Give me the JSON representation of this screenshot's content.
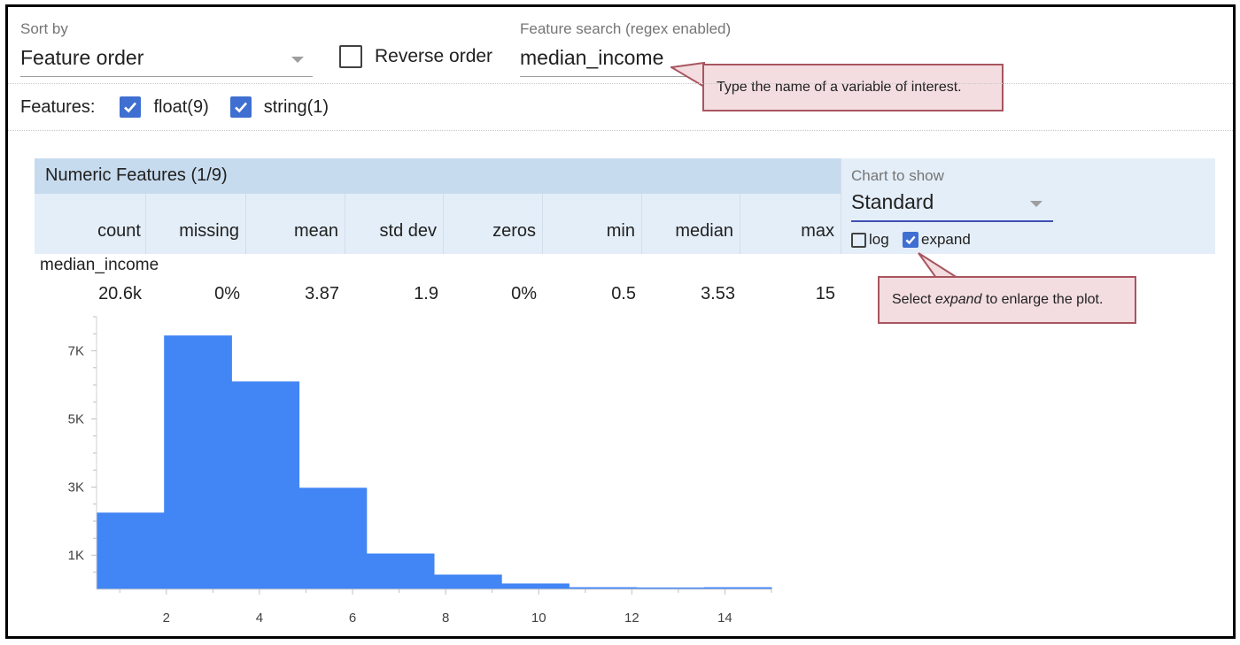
{
  "sort": {
    "label": "Sort by",
    "value": "Feature order",
    "reverse_label": "Reverse order"
  },
  "search": {
    "label": "Feature search (regex enabled)",
    "value": "median_income"
  },
  "callouts": {
    "search_tip": "Type the name of a variable of interest.",
    "expand_tip_prefix": "Select ",
    "expand_tip_em": "expand",
    "expand_tip_suffix": " to enlarge the plot."
  },
  "features": {
    "label": "Features:",
    "filters": [
      {
        "label": "float(9)",
        "checked": true
      },
      {
        "label": "string(1)",
        "checked": true
      }
    ]
  },
  "numeric": {
    "title": "Numeric Features (1/9)",
    "columns": [
      "count",
      "missing",
      "mean",
      "std dev",
      "zeros",
      "min",
      "median",
      "max"
    ],
    "feature_name": "median_income",
    "values": [
      "20.6k",
      "0%",
      "3.87",
      "1.9",
      "0%",
      "0.5",
      "3.53",
      "15"
    ]
  },
  "chart_options": {
    "label": "Chart to show",
    "value": "Standard",
    "log_label": "log",
    "log_checked": false,
    "expand_label": "expand",
    "expand_checked": true
  },
  "colors": {
    "bar": "#4285f4",
    "header_bg": "#c7dbee",
    "columns_bg": "#e4eef8",
    "checkbox": "#3f6fd1",
    "callout_bg": "#f3dde0",
    "callout_border": "#a8555f"
  },
  "chart_data": {
    "type": "bar",
    "xlim": [
      0.5,
      15
    ],
    "ylim": [
      0,
      8000
    ],
    "x_ticks": [
      2,
      4,
      6,
      8,
      10,
      12,
      14
    ],
    "y_ticks": [
      1000,
      3000,
      5000,
      7000
    ],
    "y_tick_labels": [
      "1K",
      "3K",
      "5K",
      "7K"
    ],
    "bins": [
      {
        "x0": 0.5,
        "x1": 1.95,
        "value": 2250
      },
      {
        "x0": 1.95,
        "x1": 3.4,
        "value": 7450
      },
      {
        "x0": 3.4,
        "x1": 4.85,
        "value": 6100
      },
      {
        "x0": 4.85,
        "x1": 6.3,
        "value": 2980
      },
      {
        "x0": 6.3,
        "x1": 7.75,
        "value": 1050
      },
      {
        "x0": 7.75,
        "x1": 9.2,
        "value": 430
      },
      {
        "x0": 9.2,
        "x1": 10.65,
        "value": 170
      },
      {
        "x0": 10.65,
        "x1": 12.1,
        "value": 60
      },
      {
        "x0": 12.1,
        "x1": 13.55,
        "value": 50
      },
      {
        "x0": 13.55,
        "x1": 15.0,
        "value": 60
      }
    ]
  }
}
